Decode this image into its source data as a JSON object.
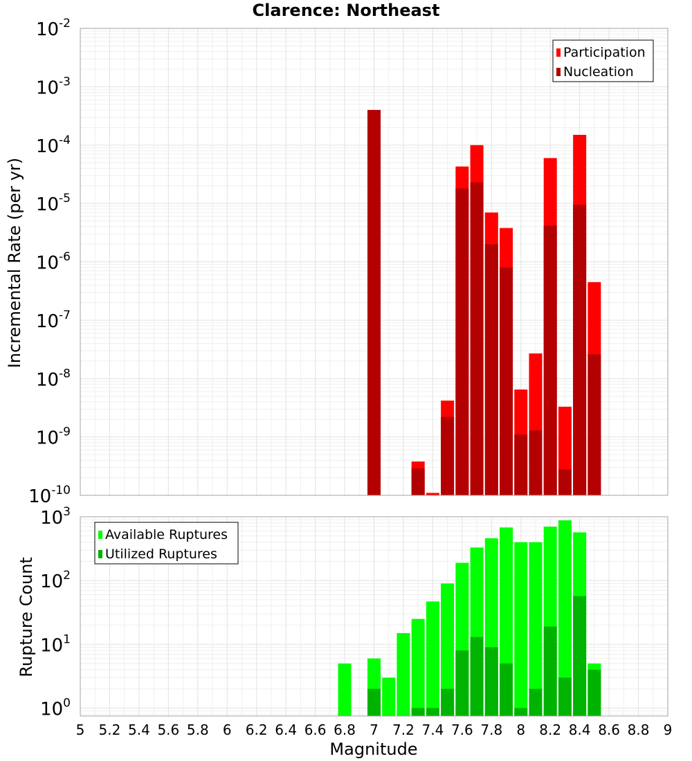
{
  "chart_data": [
    {
      "type": "bar",
      "title": "Clarence: Northeast",
      "xlabel": "",
      "ylabel": "Incremental Rate (per yr)",
      "yscale": "log",
      "ylim": [
        1e-10,
        0.01
      ],
      "xlim": [
        5,
        9
      ],
      "grid": true,
      "legend_position": "top-right",
      "x": [
        7.0,
        7.3,
        7.4,
        7.5,
        7.6,
        7.7,
        7.8,
        7.9,
        8.0,
        8.1,
        8.2,
        8.3,
        8.4,
        8.5
      ],
      "series": [
        {
          "name": "Participation",
          "color": "#ff0000",
          "values": [
            0.0004,
            3.8e-10,
            1.1e-10,
            4.2e-09,
            4.3e-05,
            0.0001,
            7e-06,
            3.8e-06,
            6.5e-09,
            2.7e-08,
            6e-05,
            3.3e-09,
            0.00015,
            4.5e-07
          ]
        },
        {
          "name": "Nucleation",
          "color": "#b30000",
          "values": [
            0.0004,
            2.9e-10,
            null,
            2.2e-09,
            1.8e-05,
            2.3e-05,
            2e-06,
            8e-07,
            1.1e-09,
            1.3e-09,
            4.2e-06,
            2.8e-10,
            9.5e-06,
            2.6e-08
          ]
        }
      ]
    },
    {
      "type": "bar",
      "title": "",
      "xlabel": "Magnitude",
      "ylabel": "Rupture Count",
      "yscale": "log",
      "ylim": [
        0.75,
        1000
      ],
      "xlim": [
        5,
        9
      ],
      "grid": true,
      "legend_position": "top-left",
      "x": [
        6.8,
        7.0,
        7.1,
        7.2,
        7.3,
        7.4,
        7.5,
        7.6,
        7.7,
        7.8,
        7.9,
        8.0,
        8.1,
        8.2,
        8.3,
        8.4,
        8.5
      ],
      "x_ticks": [
        "5",
        "5.2",
        "5.4",
        "5.6",
        "5.8",
        "6",
        "6.2",
        "6.4",
        "6.6",
        "6.8",
        "7",
        "7.2",
        "7.4",
        "7.6",
        "7.8",
        "8",
        "8.2",
        "8.4",
        "8.6",
        "8.8",
        "9"
      ],
      "series": [
        {
          "name": "Available Ruptures",
          "color": "#00ff00",
          "values": [
            5,
            6,
            3,
            15,
            25,
            47,
            90,
            190,
            330,
            460,
            680,
            400,
            400,
            700,
            880,
            570,
            5
          ]
        },
        {
          "name": "Utilized Ruptures",
          "color": "#00b300",
          "values": [
            null,
            2,
            null,
            null,
            1,
            1,
            2,
            8,
            13,
            9,
            5,
            1,
            2,
            19,
            3,
            57,
            4
          ]
        }
      ]
    }
  ],
  "y_ticks_top": [
    {
      "base": "10",
      "exp": "-2"
    },
    {
      "base": "10",
      "exp": "-3"
    },
    {
      "base": "10",
      "exp": "-4"
    },
    {
      "base": "10",
      "exp": "-5"
    },
    {
      "base": "10",
      "exp": "-6"
    },
    {
      "base": "10",
      "exp": "-7"
    },
    {
      "base": "10",
      "exp": "-8"
    },
    {
      "base": "10",
      "exp": "-9"
    },
    {
      "base": "10",
      "exp": "-10"
    }
  ],
  "y_ticks_bottom": [
    {
      "base": "10",
      "exp": "3"
    },
    {
      "base": "10",
      "exp": "2"
    },
    {
      "base": "10",
      "exp": "1"
    },
    {
      "base": "10",
      "exp": "0"
    }
  ]
}
